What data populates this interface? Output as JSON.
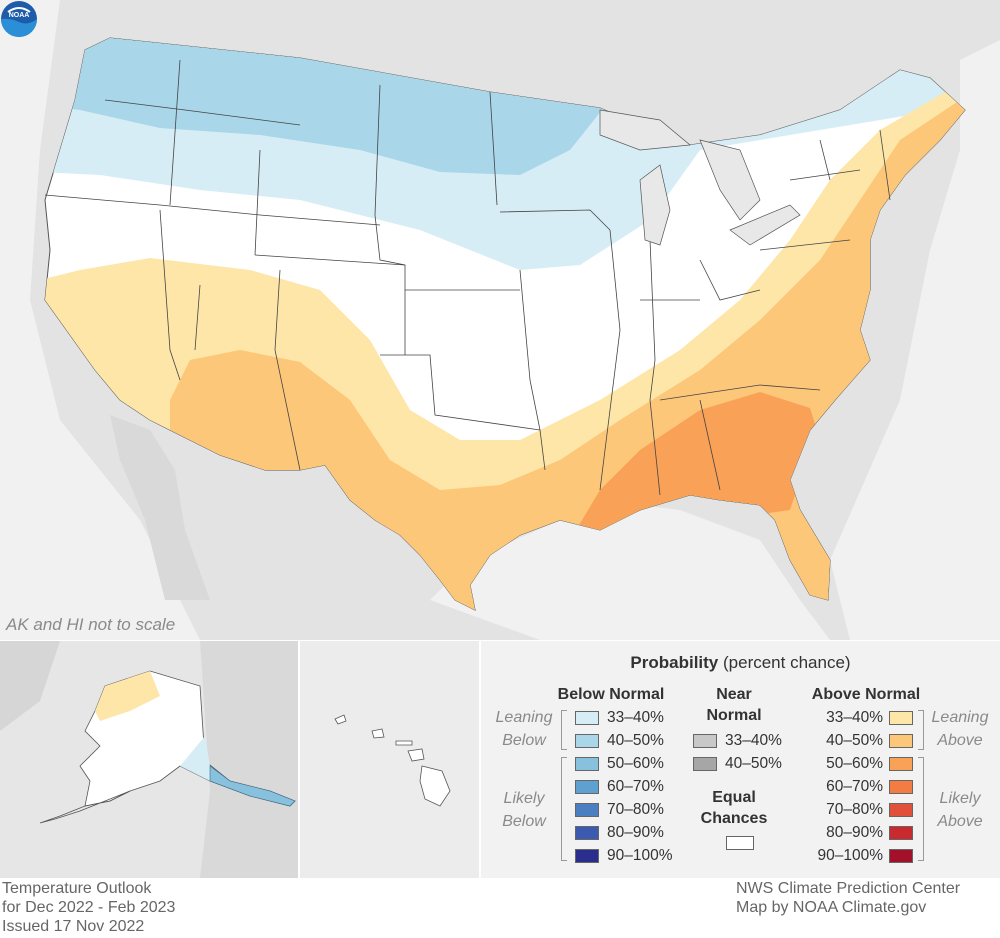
{
  "map": {
    "scale_note": "AK and HI not to scale",
    "logo_text": "NOAA",
    "colors": {
      "land_bg": "#e3e3e3",
      "below_33_40": "#d6edf6",
      "below_40_50": "#a9d6e9",
      "near_33_40": "#c8c8c8",
      "near_40_50": "#a6a6a6",
      "equal_chances": "#ffffff",
      "above_33_40": "#fde6a8",
      "above_40_50": "#fdc77a",
      "above_50_60": "#f9a257",
      "above_60_70": "#f27c42"
    }
  },
  "legend": {
    "title_bold": "Probability",
    "title_rest": "(percent chance)",
    "below": {
      "heading": "Below Normal",
      "items": [
        {
          "label": "33–40%",
          "color": "#d6edf6"
        },
        {
          "label": "40–50%",
          "color": "#a9d6e9"
        },
        {
          "label": "50–60%",
          "color": "#88c1dd"
        },
        {
          "label": "60–70%",
          "color": "#5ea0cf"
        },
        {
          "label": "70–80%",
          "color": "#4a7fc2"
        },
        {
          "label": "80–90%",
          "color": "#3b5ab0"
        },
        {
          "label": "90–100%",
          "color": "#2a2f8e"
        }
      ]
    },
    "near": {
      "heading_line1": "Near",
      "heading_line2": "Normal",
      "items": [
        {
          "label": "33–40%",
          "color": "#c8c8c8"
        },
        {
          "label": "40–50%",
          "color": "#a6a6a6"
        }
      ],
      "equal_line1": "Equal",
      "equal_line2": "Chances",
      "equal_color": "#ffffff"
    },
    "above": {
      "heading": "Above Normal",
      "items": [
        {
          "label": "33–40%",
          "color": "#fde6a8"
        },
        {
          "label": "40–50%",
          "color": "#fdc77a"
        },
        {
          "label": "50–60%",
          "color": "#f9a257"
        },
        {
          "label": "60–70%",
          "color": "#f27c42"
        },
        {
          "label": "70–80%",
          "color": "#e0503a"
        },
        {
          "label": "80–90%",
          "color": "#c82a2f"
        },
        {
          "label": "90–100%",
          "color": "#a2102a"
        }
      ]
    },
    "leaning_below": [
      "Leaning",
      "Below"
    ],
    "likely_below": [
      "Likely",
      "Below"
    ],
    "leaning_above": [
      "Leaning",
      "Above"
    ],
    "likely_above": [
      "Likely",
      "Above"
    ]
  },
  "footer": {
    "left": [
      "Temperature Outlook",
      "for Dec 2022 - Feb 2023",
      "Issued 17 Nov 2022"
    ],
    "right": [
      "NWS Climate Prediction Center",
      "Map by NOAA Climate.gov"
    ]
  }
}
